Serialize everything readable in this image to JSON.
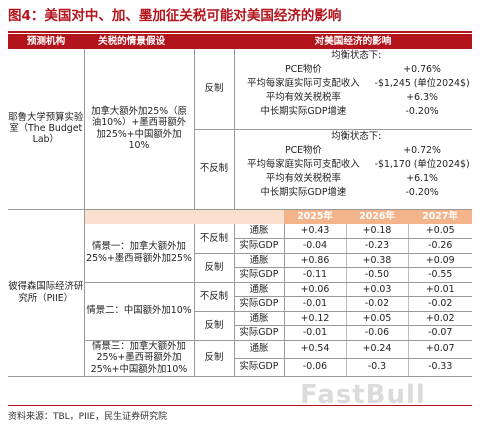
{
  "title": "图4：美国对中、加、墨加征关税可能对美国经济的影响",
  "header": {
    "institution": "预测机构",
    "scenario": "关税的情景假设",
    "impact": "对美国经济的影响"
  },
  "yale": {
    "institution": "耶鲁大学预算实验室（The Budget Lab）",
    "scenario": "加拿大额外加25%（原油10%）+墨西哥额外加25%+中国额外加10%",
    "blocks": [
      {
        "reaction": "反制",
        "subtitle": "均衡状态下:",
        "rows": [
          {
            "label": "PCE物价",
            "value": "+0.76%"
          },
          {
            "label": "平均每家庭实际可支配收入",
            "value": "-$1,245 (单位2024$)"
          },
          {
            "label": "平均有效关税税率",
            "value": "+6.3%"
          },
          {
            "label": "中长期实际GDP增速",
            "value": "-0.20%"
          }
        ]
      },
      {
        "reaction": "不反制",
        "subtitle": "均衡状态下:",
        "rows": [
          {
            "label": "PCE物价",
            "value": "+0.72%"
          },
          {
            "label": "平均每家庭实际可支配收入",
            "value": "-$1,170 (单位2024$)"
          },
          {
            "label": "平均有效关税税率",
            "value": "+6.1%"
          },
          {
            "label": "中长期实际GDP增速",
            "value": "-0.20%"
          }
        ]
      }
    ]
  },
  "piie": {
    "institution": "彼得森国际经济研究所（PIIE）",
    "years": [
      "2025年",
      "2026年",
      "2027年"
    ],
    "scenarios": [
      {
        "name": "情景一：加拿大额外加25%+墨西哥额外加25%",
        "reactions": [
          {
            "reaction": "不反制",
            "rows": [
              {
                "indicator": "通胀",
                "values": [
                  "+0.43",
                  "+0.18",
                  "+0.05"
                ]
              },
              {
                "indicator": "实际GDP",
                "values": [
                  "-0.04",
                  "-0.23",
                  "-0.26"
                ]
              }
            ]
          },
          {
            "reaction": "反制",
            "rows": [
              {
                "indicator": "通胀",
                "values": [
                  "+0.86",
                  "+0.38",
                  "+0.09"
                ]
              },
              {
                "indicator": "实际GDP",
                "values": [
                  "-0.11",
                  "-0.50",
                  "-0.55"
                ]
              }
            ]
          }
        ]
      },
      {
        "name": "情景二：中国额外加10%",
        "reactions": [
          {
            "reaction": "不反制",
            "rows": [
              {
                "indicator": "通胀",
                "values": [
                  "+0.06",
                  "+0.03",
                  "+0.01"
                ]
              },
              {
                "indicator": "实际GDP",
                "values": [
                  "-0.01",
                  "-0.02",
                  "-0.02"
                ]
              }
            ]
          },
          {
            "reaction": "反制",
            "rows": [
              {
                "indicator": "通胀",
                "values": [
                  "+0.12",
                  "+0.05",
                  "+0.02"
                ]
              },
              {
                "indicator": "实际GDP",
                "values": [
                  "-0.01",
                  "-0.06",
                  "-0.07"
                ]
              }
            ]
          }
        ]
      },
      {
        "name": "情景三：加拿大额外加25%+墨西哥额外加25%+中国额外加10%",
        "reactions": [
          {
            "reaction": "反制",
            "rows": [
              {
                "indicator": "通胀",
                "values": [
                  "+0.54",
                  "+0.24",
                  "+0.07"
                ]
              },
              {
                "indicator": "实际GDP",
                "values": [
                  "-0.06",
                  "-0.3",
                  "-0.33"
                ]
              }
            ]
          }
        ]
      }
    ]
  },
  "source": "资料来源：TBL，PIIE，民生证券研究院",
  "watermark": "FastBull",
  "colors": {
    "accent": "#b3131b",
    "year_header": "#f4b48b",
    "year_header_light": "#fbe0cf"
  }
}
